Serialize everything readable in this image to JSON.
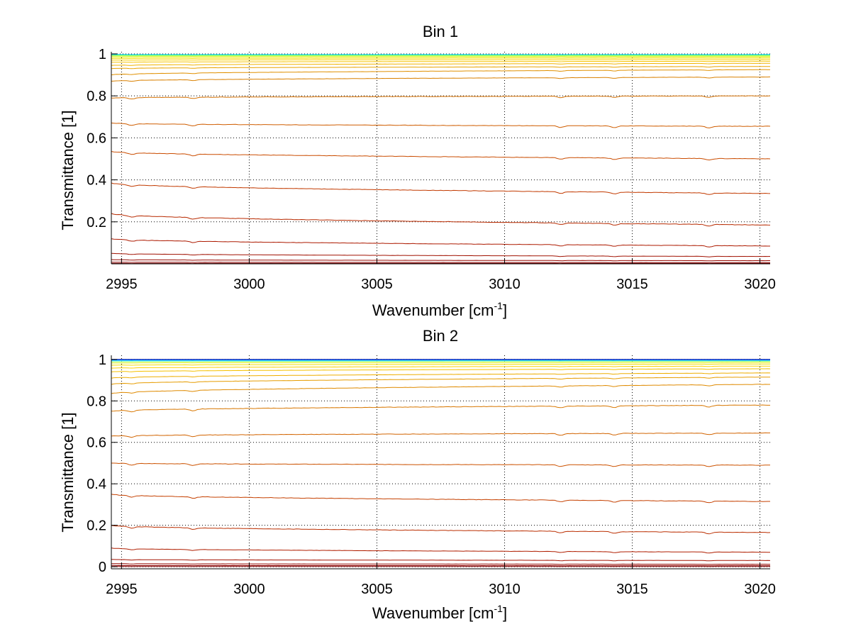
{
  "chart_data": [
    {
      "type": "line",
      "title": "Bin 1",
      "xlabel": "Wavenumber [cm",
      "xlabel_sup": "-1",
      "xlabel_close": "]",
      "ylabel": "Transmittance [1]",
      "xlim": [
        2994.6,
        3020.4
      ],
      "ylim": [
        0,
        1.01
      ],
      "xticks": [
        2995,
        3000,
        3005,
        3010,
        3015,
        3020
      ],
      "xtick_labels": [
        "2995",
        "3000",
        "3005",
        "3010",
        "3015",
        "3020"
      ],
      "yticks": [
        0.2,
        0.4,
        0.6,
        0.8,
        1
      ],
      "ytick_labels": [
        "0.2",
        "0.4",
        "0.6",
        "0.8",
        "1"
      ],
      "grid": true,
      "series": [
        {
          "name": "b1-s01",
          "color": "#00bfff",
          "start": 0.997,
          "end": 0.997
        },
        {
          "name": "b1-s02",
          "color": "#33e0cc",
          "start": 0.995,
          "end": 0.995
        },
        {
          "name": "b1-s03",
          "color": "#7fff7f",
          "start": 0.993,
          "end": 0.993
        },
        {
          "name": "b1-s04",
          "color": "#bfff3f",
          "start": 0.99,
          "end": 0.99
        },
        {
          "name": "b1-s05",
          "color": "#e5f000",
          "start": 0.985,
          "end": 0.986
        },
        {
          "name": "b1-s06",
          "color": "#f5e000",
          "start": 0.978,
          "end": 0.98
        },
        {
          "name": "b1-s07",
          "color": "#fcd200",
          "start": 0.97,
          "end": 0.973
        },
        {
          "name": "b1-s08",
          "color": "#f7c400",
          "start": 0.96,
          "end": 0.965
        },
        {
          "name": "b1-s09",
          "color": "#f0b400",
          "start": 0.945,
          "end": 0.955
        },
        {
          "name": "b1-s10",
          "color": "#e8a300",
          "start": 0.93,
          "end": 0.94
        },
        {
          "name": "b1-s11",
          "color": "#e09000",
          "start": 0.9,
          "end": 0.925
        },
        {
          "name": "b1-s12",
          "color": "#d98000",
          "start": 0.87,
          "end": 0.89
        },
        {
          "name": "b1-s13",
          "color": "#d46f00",
          "start": 0.79,
          "end": 0.8
        },
        {
          "name": "b1-s14",
          "color": "#cf5d00",
          "start": 0.67,
          "end": 0.655
        },
        {
          "name": "b1-s15",
          "color": "#ca4c00",
          "start": 0.535,
          "end": 0.5
        },
        {
          "name": "b1-s16",
          "color": "#c23a00",
          "start": 0.385,
          "end": 0.335
        },
        {
          "name": "b1-s17",
          "color": "#b82a00",
          "start": 0.24,
          "end": 0.185
        },
        {
          "name": "b1-s18",
          "color": "#ad1a00",
          "start": 0.12,
          "end": 0.085
        },
        {
          "name": "b1-s19",
          "color": "#a01000",
          "start": 0.05,
          "end": 0.035
        },
        {
          "name": "b1-s20",
          "color": "#950800",
          "start": 0.02,
          "end": 0.015
        },
        {
          "name": "b1-s21",
          "color": "#8b0000",
          "start": 0.008,
          "end": 0.006
        },
        {
          "name": "b1-s22",
          "color": "#800000",
          "start": 0.002,
          "end": 0.002
        }
      ]
    },
    {
      "type": "line",
      "title": "Bin 2",
      "xlabel": "Wavenumber [cm",
      "xlabel_sup": "-1",
      "xlabel_close": "]",
      "ylabel": "Transmittance [1]",
      "xlim": [
        2994.6,
        3020.4
      ],
      "ylim": [
        -0.01,
        1.02
      ],
      "xticks": [
        2995,
        3000,
        3005,
        3010,
        3015,
        3020
      ],
      "xtick_labels": [
        "2995",
        "3000",
        "3005",
        "3010",
        "3015",
        "3020"
      ],
      "yticks": [
        0,
        0.2,
        0.4,
        0.6,
        0.8,
        1
      ],
      "ytick_labels": [
        "0",
        "0.2",
        "0.4",
        "0.6",
        "0.8",
        "1"
      ],
      "grid": true,
      "series": [
        {
          "name": "b2-s01",
          "color": "#000080",
          "start": 1.0,
          "end": 1.0
        },
        {
          "name": "b2-s02",
          "color": "#0040ff",
          "start": 0.998,
          "end": 0.998
        },
        {
          "name": "b2-s03",
          "color": "#00bfff",
          "start": 0.995,
          "end": 0.995
        },
        {
          "name": "b2-s04",
          "color": "#7fff7f",
          "start": 0.99,
          "end": 0.992
        },
        {
          "name": "b2-s05",
          "color": "#d8f000",
          "start": 0.983,
          "end": 0.986
        },
        {
          "name": "b2-s06",
          "color": "#f5e000",
          "start": 0.972,
          "end": 0.978
        },
        {
          "name": "b2-s07",
          "color": "#fcd200",
          "start": 0.958,
          "end": 0.968
        },
        {
          "name": "b2-s08",
          "color": "#f5c000",
          "start": 0.94,
          "end": 0.955
        },
        {
          "name": "b2-s09",
          "color": "#eeae00",
          "start": 0.91,
          "end": 0.935
        },
        {
          "name": "b2-s10",
          "color": "#e69c00",
          "start": 0.88,
          "end": 0.915
        },
        {
          "name": "b2-s11",
          "color": "#df8a00",
          "start": 0.835,
          "end": 0.88
        },
        {
          "name": "b2-s12",
          "color": "#d87700",
          "start": 0.75,
          "end": 0.78
        },
        {
          "name": "b2-s13",
          "color": "#d26400",
          "start": 0.63,
          "end": 0.645
        },
        {
          "name": "b2-s14",
          "color": "#cc5200",
          "start": 0.5,
          "end": 0.49
        },
        {
          "name": "b2-s15",
          "color": "#c54000",
          "start": 0.35,
          "end": 0.315
        },
        {
          "name": "b2-s16",
          "color": "#bb2e00",
          "start": 0.2,
          "end": 0.165
        },
        {
          "name": "b2-s17",
          "color": "#b01e00",
          "start": 0.09,
          "end": 0.07
        },
        {
          "name": "b2-s18",
          "color": "#a31200",
          "start": 0.035,
          "end": 0.03
        },
        {
          "name": "b2-s19",
          "color": "#960900",
          "start": 0.015,
          "end": 0.012
        },
        {
          "name": "b2-s20",
          "color": "#8b0000",
          "start": 0.006,
          "end": 0.005
        },
        {
          "name": "b2-s21",
          "color": "#800000",
          "start": 0.001,
          "end": 0.001
        }
      ]
    }
  ]
}
